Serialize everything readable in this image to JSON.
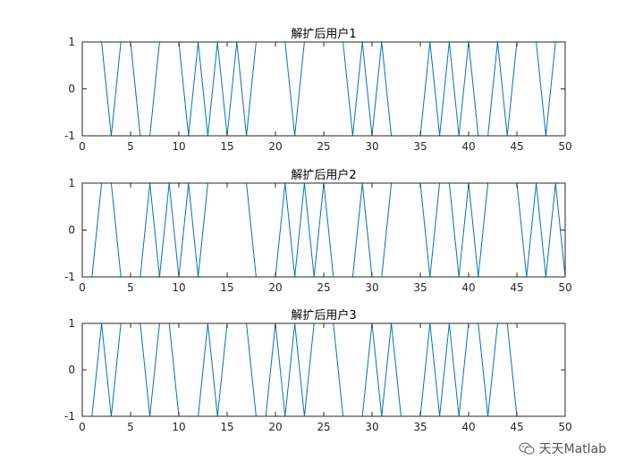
{
  "chart_data": [
    {
      "type": "line",
      "title": "解扩后用户1",
      "xlim": [
        0,
        50
      ],
      "ylim": [
        -1,
        1
      ],
      "xticks": [
        0,
        5,
        10,
        15,
        20,
        25,
        30,
        35,
        40,
        45,
        50
      ],
      "yticks": [
        -1,
        0,
        1
      ],
      "x": [
        1,
        2,
        3,
        4,
        5,
        6,
        7,
        8,
        9,
        10,
        11,
        12,
        13,
        14,
        15,
        16,
        17,
        18,
        19,
        20,
        21,
        22,
        23,
        24,
        25,
        26,
        27,
        28,
        29,
        30,
        31,
        32,
        33,
        34,
        35,
        36,
        37,
        38,
        39,
        40,
        41,
        42,
        43,
        44,
        45,
        46,
        47,
        48,
        49,
        50
      ],
      "values": [
        1,
        1,
        -1,
        1,
        1,
        -1,
        -1,
        1,
        1,
        1,
        -1,
        1,
        -1,
        1,
        -1,
        1,
        -1,
        1,
        1,
        1,
        1,
        -1,
        1,
        1,
        1,
        1,
        1,
        -1,
        1,
        -1,
        1,
        -1,
        -1,
        -1,
        -1,
        1,
        -1,
        1,
        -1,
        1,
        -1,
        -1,
        1,
        -1,
        1,
        1,
        1,
        -1,
        1,
        1
      ],
      "color": "#0072bd"
    },
    {
      "type": "line",
      "title": "解扩后用户2",
      "xlim": [
        0,
        50
      ],
      "ylim": [
        -1,
        1
      ],
      "xticks": [
        0,
        5,
        10,
        15,
        20,
        25,
        30,
        35,
        40,
        45,
        50
      ],
      "yticks": [
        -1,
        0,
        1
      ],
      "x": [
        1,
        2,
        3,
        4,
        5,
        6,
        7,
        8,
        9,
        10,
        11,
        12,
        13,
        14,
        15,
        16,
        17,
        18,
        19,
        20,
        21,
        22,
        23,
        24,
        25,
        26,
        27,
        28,
        29,
        30,
        31,
        32,
        33,
        34,
        35,
        36,
        37,
        38,
        39,
        40,
        41,
        42,
        43,
        44,
        45,
        46,
        47,
        48,
        49,
        50
      ],
      "values": [
        -1,
        1,
        1,
        -1,
        -1,
        -1,
        1,
        -1,
        1,
        -1,
        1,
        -1,
        1,
        1,
        1,
        1,
        1,
        -1,
        -1,
        -1,
        1,
        -1,
        1,
        -1,
        1,
        -1,
        -1,
        -1,
        1,
        -1,
        -1,
        1,
        1,
        1,
        1,
        -1,
        1,
        1,
        -1,
        1,
        -1,
        1,
        1,
        1,
        1,
        -1,
        1,
        -1,
        1,
        -1
      ],
      "color": "#0072bd"
    },
    {
      "type": "line",
      "title": "解扩后用户3",
      "xlim": [
        0,
        50
      ],
      "ylim": [
        -1,
        1
      ],
      "xticks": [
        0,
        5,
        10,
        15,
        20,
        25,
        30,
        35,
        40,
        45,
        50
      ],
      "yticks": [
        -1,
        0,
        1
      ],
      "x": [
        1,
        2,
        3,
        4,
        5,
        6,
        7,
        8,
        9,
        10,
        11,
        12,
        13,
        14,
        15,
        16,
        17,
        18,
        19,
        20,
        21,
        22,
        23,
        24,
        25,
        26,
        27,
        28,
        29,
        30,
        31,
        32,
        33,
        34,
        35,
        36,
        37,
        38,
        39,
        40,
        41,
        42,
        43,
        44,
        45,
        46,
        47,
        48,
        49,
        50
      ],
      "values": [
        -1,
        1,
        -1,
        1,
        1,
        1,
        -1,
        1,
        1,
        -1,
        -1,
        -1,
        1,
        -1,
        1,
        1,
        1,
        -1,
        -1,
        1,
        -1,
        1,
        -1,
        1,
        1,
        1,
        -1,
        -1,
        -1,
        1,
        -1,
        1,
        -1,
        -1,
        -1,
        1,
        -1,
        1,
        -1,
        1,
        1,
        -1,
        1,
        1,
        -1,
        -1,
        -1,
        -1,
        -1,
        -1
      ],
      "color": "#0072bd"
    }
  ],
  "watermark": {
    "text": "天天Matlab",
    "icon": "wechat-icon"
  }
}
